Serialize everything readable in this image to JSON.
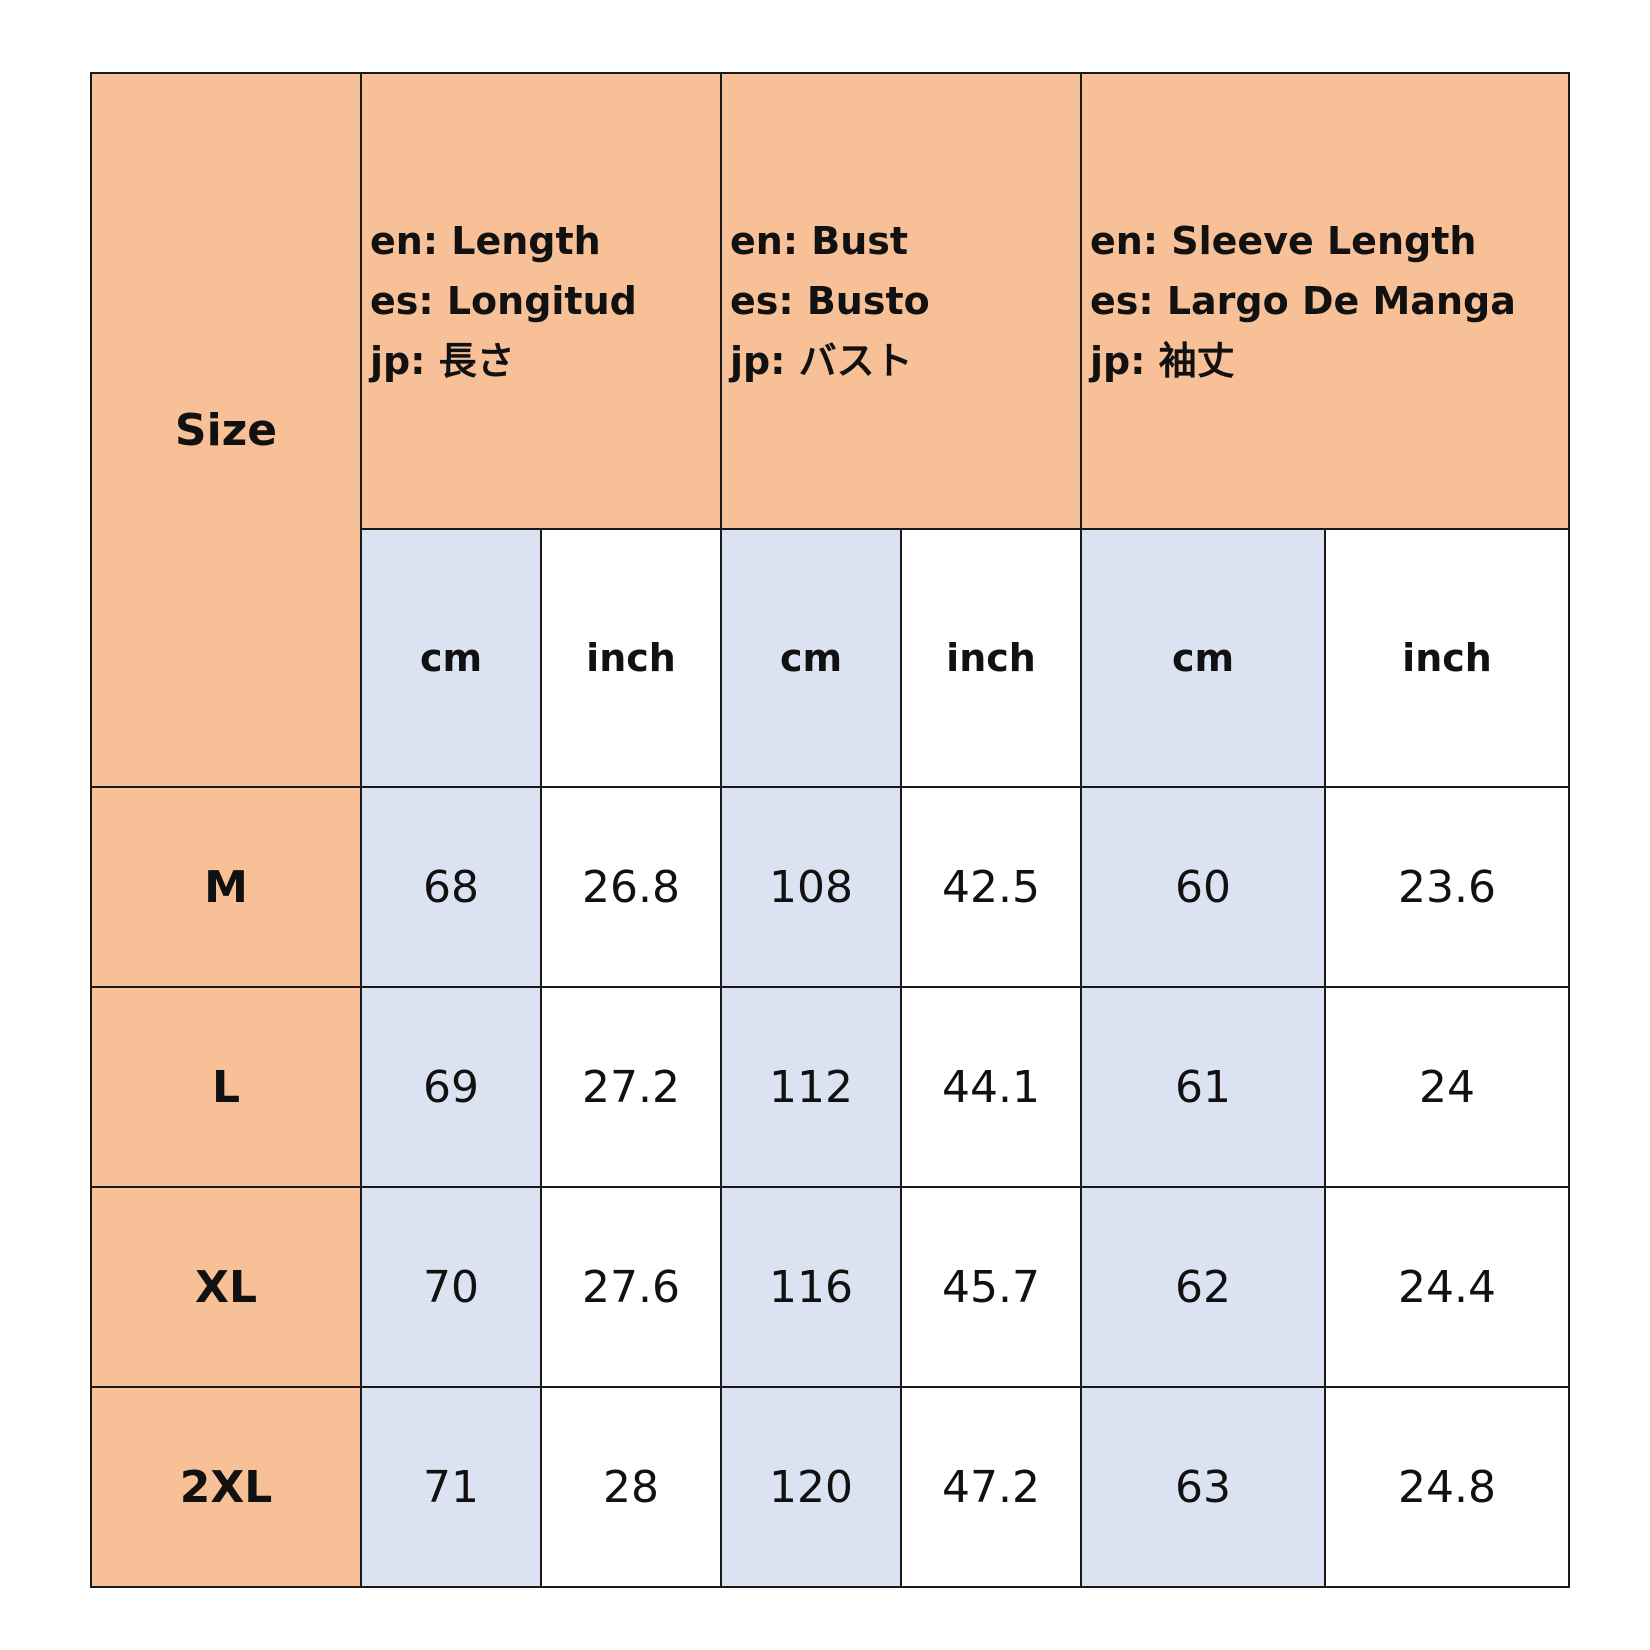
{
  "table": {
    "size_header": "Size",
    "measures": [
      {
        "en": "en: Length",
        "es": "es: Longitud",
        "jp": "jp: 長さ"
      },
      {
        "en": "en: Bust",
        "es": "es: Busto",
        "jp": "jp: バスト"
      },
      {
        "en": "en: Sleeve Length",
        "es": "es: Largo De Manga",
        "jp": "jp: 袖丈"
      }
    ],
    "units": [
      "cm",
      "inch",
      "cm",
      "inch",
      "cm",
      "inch"
    ],
    "rows": [
      {
        "size": "M",
        "values": [
          "68",
          "26.8",
          "108",
          "42.5",
          "60",
          "23.6"
        ]
      },
      {
        "size": "L",
        "values": [
          "69",
          "27.2",
          "112",
          "44.1",
          "61",
          "24"
        ]
      },
      {
        "size": "XL",
        "values": [
          "70",
          "27.6",
          "116",
          "45.7",
          "62",
          "24.4"
        ]
      },
      {
        "size": "2XL",
        "values": [
          "71",
          "28",
          "120",
          "47.2",
          "63",
          "24.8"
        ]
      }
    ]
  },
  "colors": {
    "header_peach": "#f8c096",
    "cm_column_blue": "#dbe2f1",
    "inch_column_white": "#ffffff",
    "border": "#1a1a1a"
  }
}
